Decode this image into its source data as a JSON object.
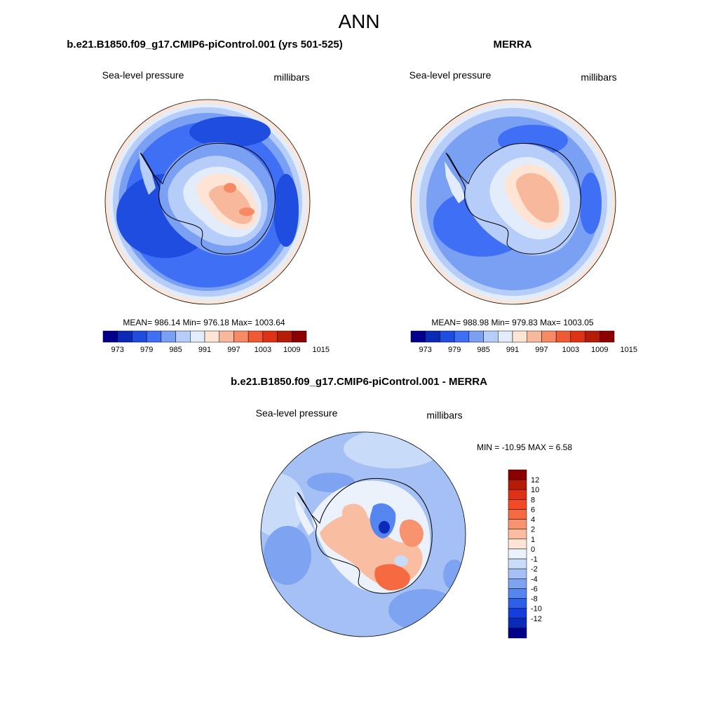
{
  "figure": {
    "title": "ANN"
  },
  "colors": {
    "abs_levels": [
      "#00008b",
      "#0b2ab8",
      "#1f4de0",
      "#3f6ff5",
      "#7aa0f4",
      "#b5cdf8",
      "#e2ecfb",
      "#fde4d5",
      "#f8b89b",
      "#f58a64",
      "#ef5a36",
      "#de3216",
      "#b51c08",
      "#8b0000"
    ],
    "diff_levels": [
      "#8b0000",
      "#b51c08",
      "#de3216",
      "#f24a22",
      "#f56a40",
      "#f7936e",
      "#f9bda2",
      "#fde4d5",
      "#ecf2fb",
      "#c8dbf8",
      "#a4c0f4",
      "#7da3f1",
      "#5585ee",
      "#2d60ea",
      "#143ddb",
      "#0b2ab8",
      "#00008b"
    ],
    "coast": "#000000",
    "lon_ring": "#d4b09c"
  },
  "chart_data": [
    {
      "id": "model",
      "type": "heatmap",
      "projection": "south-polar-stereographic",
      "title": "b.e21.B1850.f09_g17.CMIP6-piControl.001 (yrs 501-525)",
      "left_label": "Sea-level pressure",
      "right_label": "millibars",
      "stats_text": "MEAN= 986.14  Min= 976.18  Max= 1003.64",
      "mean": 986.14,
      "min": 976.18,
      "max": 1003.64,
      "colorbar": {
        "orientation": "horizontal",
        "levels": [
          970,
          973,
          976,
          979,
          982,
          985,
          988,
          991,
          994,
          997,
          1000,
          1003,
          1006,
          1009,
          1012,
          1015,
          1018
        ],
        "labels": [
          "973",
          "979",
          "985",
          "991",
          "997",
          "1003",
          "1009",
          "1015"
        ]
      }
    },
    {
      "id": "obs",
      "type": "heatmap",
      "projection": "south-polar-stereographic",
      "title": "MERRA",
      "left_label": "Sea-level pressure",
      "right_label": "millibars",
      "stats_text": "MEAN= 988.98  Min= 979.83  Max= 1003.05",
      "mean": 988.98,
      "min": 979.83,
      "max": 1003.05,
      "colorbar": {
        "orientation": "horizontal",
        "levels": [
          970,
          973,
          976,
          979,
          982,
          985,
          988,
          991,
          994,
          997,
          1000,
          1003,
          1006,
          1009,
          1012,
          1015,
          1018
        ],
        "labels": [
          "973",
          "979",
          "985",
          "991",
          "997",
          "1003",
          "1009",
          "1015"
        ]
      }
    },
    {
      "id": "diff",
      "type": "heatmap",
      "projection": "south-polar-stereographic",
      "title": "b.e21.B1850.f09_g17.CMIP6-piControl.001 - MERRA",
      "left_label": "Sea-level pressure",
      "right_label": "millibars",
      "stats_text": "MIN = -10.95 MAX =   6.58",
      "min": -10.95,
      "max": 6.58,
      "colorbar": {
        "orientation": "vertical",
        "labels": [
          "12",
          "10",
          "8",
          "6",
          "4",
          "2",
          "1",
          "0",
          "-1",
          "-2",
          "-4",
          "-6",
          "-8",
          "-10",
          "-12"
        ]
      }
    }
  ]
}
